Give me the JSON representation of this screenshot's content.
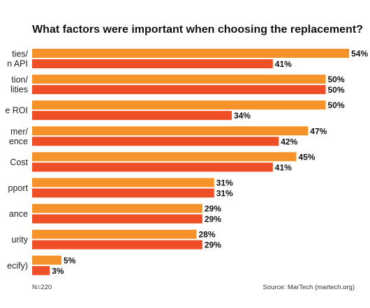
{
  "title": "What factors were important when choosing the replacement?",
  "n_note": "N=220",
  "source": "Source: MarTech (martech.org)",
  "colors": {
    "series_a": "#F5922A",
    "series_b": "#EE4F26"
  },
  "chart_data": {
    "type": "bar",
    "orientation": "horizontal",
    "title": "What factors were important when choosing the replacement?",
    "categories": [
      "ties/\nn API",
      "tion/\nlities",
      "e ROI",
      "mer/\nence",
      "Cost",
      "pport",
      "ance",
      "urity",
      "ecify)"
    ],
    "series": [
      {
        "values": [
          54,
          50,
          50,
          47,
          45,
          31,
          29,
          28,
          5
        ]
      },
      {
        "values": [
          41,
          50,
          34,
          42,
          41,
          31,
          29,
          29,
          3
        ]
      }
    ],
    "value_suffix": "%",
    "xlim": [
      0,
      54
    ],
    "grid": false,
    "legend": "none"
  }
}
